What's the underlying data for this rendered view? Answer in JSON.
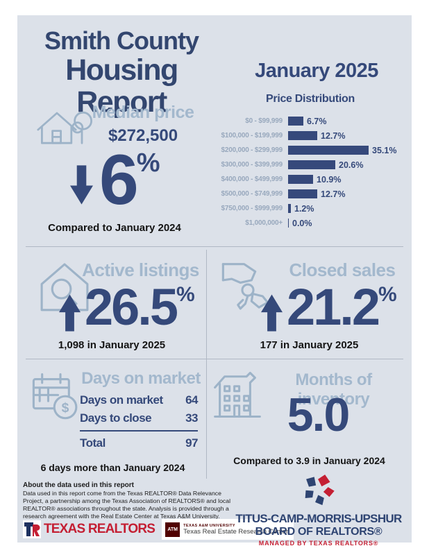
{
  "header": {
    "title_line1": "Smith County",
    "title_line2": "Housing Report",
    "month": "January 2025"
  },
  "median_price": {
    "heading": "Median price",
    "value": "$272,500",
    "change_pct": "6",
    "pct_sign": "%",
    "direction": "down",
    "compare_text": "Compared to January 2024"
  },
  "chart_data": {
    "type": "bar",
    "orientation": "horizontal",
    "title": "Price Distribution",
    "categories": [
      "$0 - $99,999",
      "$100,000 - $199,999",
      "$200,000 - $299,999",
      "$300,000 - $399,999",
      "$400,000 - $499,999",
      "$500,000 - $749,999",
      "$750,000 - $999,999",
      "$1,000,000+"
    ],
    "values": [
      6.7,
      12.7,
      35.1,
      20.6,
      10.9,
      12.7,
      1.2,
      0.0
    ],
    "value_suffix": "%",
    "xlim": [
      0,
      40
    ],
    "grid": false,
    "bar_color": "#36497b",
    "label_color": "#98a8bd"
  },
  "active_listings": {
    "heading": "Active listings",
    "change_pct": "26.5",
    "pct_sign": "%",
    "direction": "up",
    "count_text": "1,098 in January 2025"
  },
  "closed_sales": {
    "heading": "Closed sales",
    "change_pct": "21.2",
    "pct_sign": "%",
    "direction": "up",
    "count_text": "177 in January 2025"
  },
  "days_on_market": {
    "heading": "Days on market",
    "rows": [
      {
        "label": "Days on market",
        "value": "64"
      },
      {
        "label": "Days to close",
        "value": "33"
      }
    ],
    "total_label": "Total",
    "total_value": "97",
    "compare_text": "6 days more than January 2024"
  },
  "months_of_inventory": {
    "heading": "Months of inventory",
    "value": "5.0",
    "compare_text": "Compared to 3.9 in January 2024"
  },
  "footer": {
    "about_heading": "About the data used in this report",
    "about_body": "Data used in this report come from the Texas REALTOR® Data Relevance Project, a partnership among the Texas Association of REALTORS® and local REALTOR® associations throughout the state. Analysis is provided through a research agreement with the Real Estate Center at Texas A&M University.",
    "texas_realtors_label": "TEXAS REALTORS",
    "atm_mark_text": "ATM",
    "trerc_university": "TEXAS A&M UNIVERSITY",
    "trerc_name": "Texas Real Estate Research Center",
    "board_line1": "TITUS-CAMP-MORRIS-UPSHUR",
    "board_line2": "BOARD OF REALTORS®",
    "board_tagline": "MANAGED BY TEXAS REALTORS®"
  },
  "colors": {
    "panel_background": "#dce1e9",
    "navy": "#35497a",
    "light_blue_heading": "#a3b8cd",
    "icon_stroke": "#9db3c8",
    "black_text": "#141414",
    "realtors_red": "#c41f33",
    "aggie_maroon": "#500000"
  }
}
